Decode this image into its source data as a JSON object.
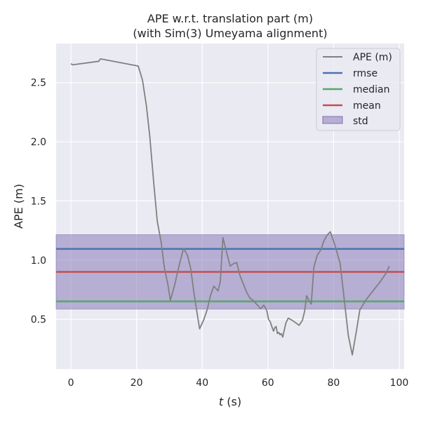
{
  "chart_data": {
    "type": "line",
    "title": [
      "APE w.r.t. translation part (m)",
      "(with Sim(3) Umeyama alignment)"
    ],
    "xlabel_var": "t",
    "xlabel_unit": " (s)",
    "ylabel": "APE (m)",
    "xlim": [
      -4.5,
      101.5
    ],
    "ylim": [
      0.08,
      2.83
    ],
    "xticks": [
      0,
      20,
      40,
      60,
      80,
      100
    ],
    "yticks": [
      0.5,
      1.0,
      1.5,
      2.0,
      2.5
    ],
    "ytick_labels": [
      "0.5",
      "1.0",
      "1.5",
      "2.0",
      "2.5"
    ],
    "grid": true,
    "legend_position": "top-right",
    "series": [
      {
        "name": "APE (m)",
        "color": "#808080",
        "x": [
          0,
          0.5,
          8.5,
          9,
          20.5,
          21.8,
          23,
          24,
          25.2,
          26.3,
          27.5,
          28.5,
          29.5,
          30.3,
          31.5,
          33,
          34.3,
          35.5,
          36.5,
          37.5,
          38.5,
          39.2,
          40.5,
          41.5,
          42.5,
          43.5,
          44.2,
          44.8,
          45.5,
          46.3,
          47.2,
          48.5,
          49.5,
          50.5,
          51.5,
          52.5,
          53.5,
          54.5,
          55.5,
          56.5,
          57.2,
          57.7,
          58.2,
          58.7,
          59.2,
          59.7,
          60.2,
          60.7,
          61.2,
          61.7,
          62.1,
          62.5,
          62.9,
          63.3,
          63.7,
          64.1,
          64.5,
          65,
          65.5,
          66.2,
          67.5,
          68.5,
          69.5,
          70.5,
          71.2,
          71.8,
          72.5,
          73.2,
          74,
          75,
          76.2,
          77,
          78,
          79,
          80.5,
          82,
          84.5,
          85.7,
          87,
          88,
          90,
          92,
          94,
          96,
          97
        ],
        "y": [
          2.66,
          2.65,
          2.68,
          2.7,
          2.64,
          2.52,
          2.3,
          2.05,
          1.66,
          1.33,
          1.15,
          0.93,
          0.8,
          0.66,
          0.78,
          0.96,
          1.1,
          1.04,
          0.93,
          0.72,
          0.54,
          0.42,
          0.5,
          0.58,
          0.7,
          0.78,
          0.76,
          0.74,
          0.82,
          1.19,
          1.09,
          0.95,
          0.97,
          0.98,
          0.87,
          0.8,
          0.73,
          0.68,
          0.66,
          0.63,
          0.61,
          0.59,
          0.6,
          0.62,
          0.6,
          0.57,
          0.5,
          0.48,
          0.44,
          0.4,
          0.43,
          0.44,
          0.38,
          0.39,
          0.37,
          0.38,
          0.35,
          0.41,
          0.47,
          0.51,
          0.49,
          0.47,
          0.45,
          0.49,
          0.57,
          0.7,
          0.66,
          0.63,
          0.94,
          1.04,
          1.09,
          1.16,
          1.21,
          1.24,
          1.12,
          0.97,
          0.36,
          0.2,
          0.41,
          0.58,
          0.67,
          0.74,
          0.81,
          0.89,
          0.95
        ]
      },
      {
        "name": "rmse",
        "color": "#4c72b0",
        "value": 1.095
      },
      {
        "name": "median",
        "color": "#55a868",
        "value": 0.652
      },
      {
        "name": "mean",
        "color": "#c44e52",
        "value": 0.901
      },
      {
        "name": "std",
        "color": "#8172b3",
        "range": [
          0.587,
          1.215
        ]
      }
    ]
  }
}
